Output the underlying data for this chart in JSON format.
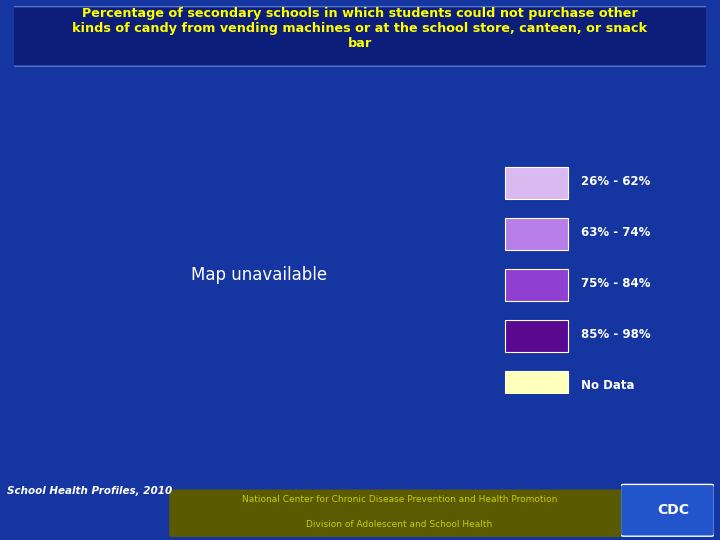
{
  "title_line1": "Percentage of secondary schools in which students could not purchase other",
  "title_line2": "kinds of candy from vending machines or at the school store, canteen, or snack",
  "title_line3": "bar",
  "title_color": "#FFFF00",
  "figure_bg": "#1535a0",
  "map_bg": "#1535a0",
  "footer_text1": "School Health Profiles, 2010",
  "footer_text2": "National Center for Chronic Disease Prevention and Health Promotion",
  "footer_text3": "Division of Adolescent and School Health",
  "legend_labels": [
    "26% - 62%",
    "63% - 74%",
    "75% - 84%",
    "85% - 98%",
    "No Data"
  ],
  "legend_colors": [
    "#dab8f0",
    "#b87ee8",
    "#9040d0",
    "#5a0a90",
    "#ffffbb"
  ],
  "state_colors": {
    "Alabama": "#5a0a90",
    "Alaska": "#b87ee8",
    "Arizona": "#b87ee8",
    "Arkansas": "#9040d0",
    "California": "#5a0a90",
    "Colorado": "#b87ee8",
    "Connecticut": "#9040d0",
    "Delaware": "#9040d0",
    "Florida": "#b87ee8",
    "Georgia": "#b87ee8",
    "Hawaii": "#b87ee8",
    "Idaho": "#dab8f0",
    "Illinois": "#ffffbb",
    "Indiana": "#b87ee8",
    "Iowa": "#dab8f0",
    "Kansas": "#dab8f0",
    "Kentucky": "#9040d0",
    "Louisiana": "#5a0a90",
    "Maine": "#5a0a90",
    "Maryland": "#9040d0",
    "Massachusetts": "#9040d0",
    "Michigan": "#9040d0",
    "Minnesota": "#dab8f0",
    "Mississippi": "#5a0a90",
    "Missouri": "#b87ee8",
    "Montana": "#dab8f0",
    "Nebraska": "#dab8f0",
    "Nevada": "#b87ee8",
    "New Hampshire": "#9040d0",
    "New Jersey": "#9040d0",
    "New Mexico": "#9040d0",
    "New York": "#5a0a90",
    "North Carolina": "#b87ee8",
    "North Dakota": "#dab8f0",
    "Ohio": "#b87ee8",
    "Oklahoma": "#9040d0",
    "Oregon": "#b87ee8",
    "Pennsylvania": "#9040d0",
    "Rhode Island": "#9040d0",
    "South Carolina": "#b87ee8",
    "South Dakota": "#dab8f0",
    "Tennessee": "#9040d0",
    "Texas": "#9040d0",
    "Utah": "#b87ee8",
    "Vermont": "#9040d0",
    "Virginia": "#9040d0",
    "Washington": "#b87ee8",
    "West Virginia": "#9040d0",
    "Wisconsin": "#b87ee8",
    "Wyoming": "#dab8f0"
  }
}
